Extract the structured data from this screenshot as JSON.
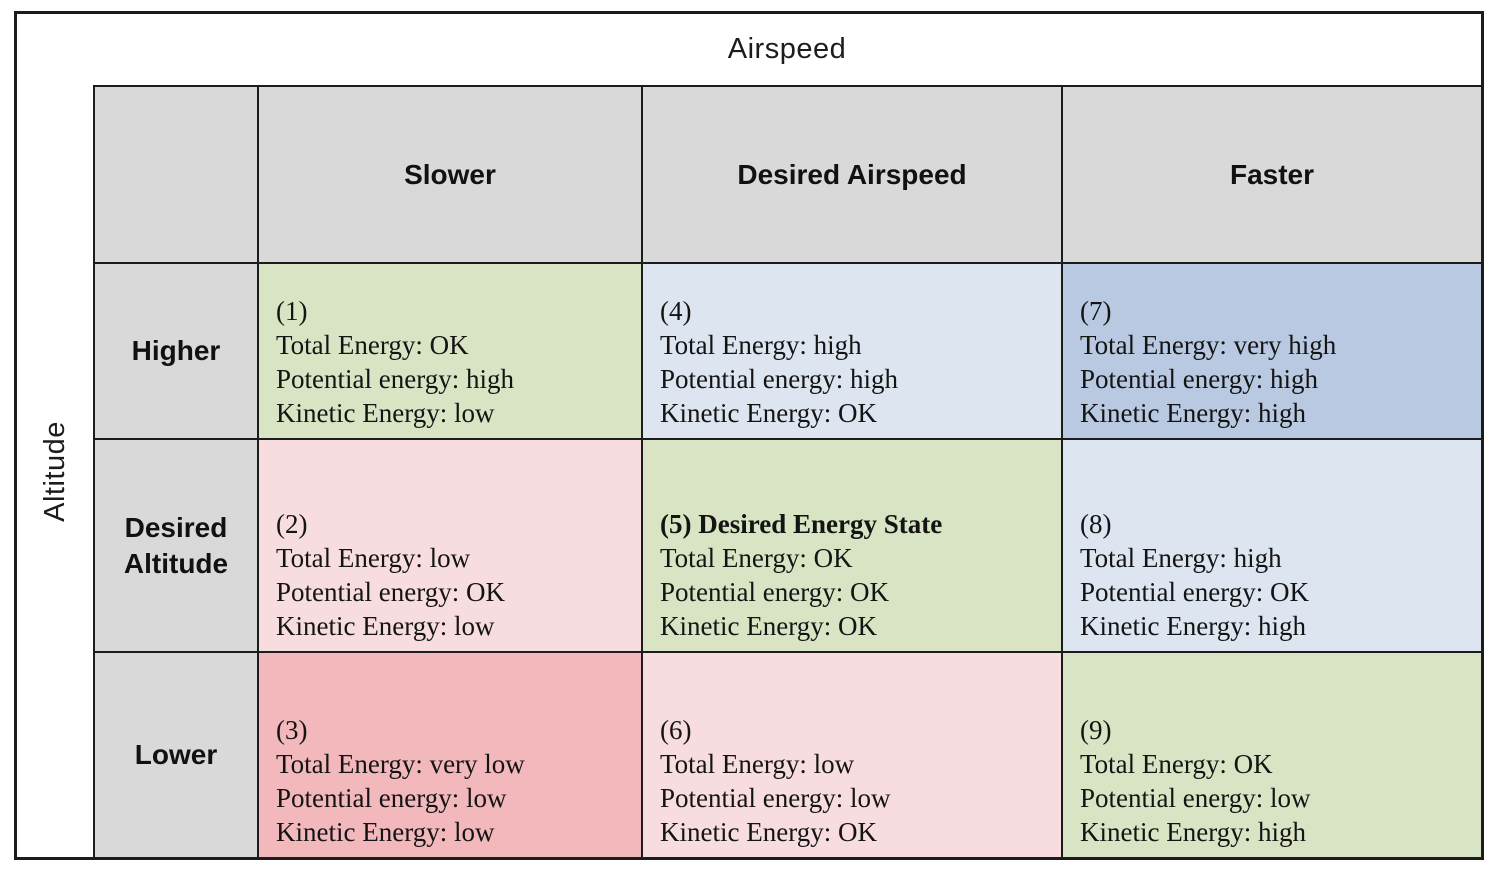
{
  "matrix": {
    "col_axis_title": "Airspeed",
    "row_axis_title": "Altitude",
    "col_headers": [
      "Slower",
      "Desired Airspeed",
      "Faster"
    ],
    "row_headers": [
      "Higher",
      "Desired Altitude",
      "Lower"
    ],
    "colors": {
      "header_gray": "#d9d9d9",
      "green": "#d8e4c3",
      "light_blue": "#dce5f0",
      "mid_blue": "#b9c9e2",
      "light_pink": "#f8dde0",
      "mid_pink": "#f2b8bc",
      "border": "#1c1c1c"
    },
    "cells": [
      {
        "num": 1,
        "head": "(1)",
        "head_bold": false,
        "line1": "Total Energy: OK",
        "line2": "Potential energy: high",
        "line3": "Kinetic Energy: low",
        "bg": "#d8e4c3"
      },
      {
        "num": 4,
        "head": "(4)",
        "head_bold": false,
        "line1": "Total Energy: high",
        "line2": "Potential energy: high",
        "line3": "Kinetic Energy: OK",
        "bg": "#dce5f0"
      },
      {
        "num": 7,
        "head": "(7)",
        "head_bold": false,
        "line1": "Total Energy: very high",
        "line2": "Potential energy: high",
        "line3": "Kinetic Energy: high",
        "bg": "#b9c9e2"
      },
      {
        "num": 2,
        "head": "(2)",
        "head_bold": false,
        "line1": "Total Energy: low",
        "line2": "Potential energy: OK",
        "line3": "Kinetic Energy: low",
        "bg": "#f8dde0"
      },
      {
        "num": 5,
        "head": "(5) Desired Energy State",
        "head_bold": true,
        "line1": "Total Energy: OK",
        "line2": "Potential energy: OK",
        "line3": "Kinetic Energy: OK",
        "bg": "#d8e4c3"
      },
      {
        "num": 8,
        "head": "(8)",
        "head_bold": false,
        "line1": "Total Energy: high",
        "line2": "Potential energy: OK",
        "line3": "Kinetic Energy: high",
        "bg": "#dce5f0"
      },
      {
        "num": 3,
        "head": "(3)",
        "head_bold": false,
        "line1": "Total Energy: very low",
        "line2": "Potential energy: low",
        "line3": "Kinetic Energy: low",
        "bg": "#f2b8bc"
      },
      {
        "num": 6,
        "head": "(6)",
        "head_bold": false,
        "line1": "Total Energy: low",
        "line2": "Potential energy: low",
        "line3": "Kinetic Energy: OK",
        "bg": "#f8dde0"
      },
      {
        "num": 9,
        "head": "(9)",
        "head_bold": false,
        "line1": "Total Energy: OK",
        "line2": "Potential energy: low",
        "line3": "Kinetic Energy: high",
        "bg": "#d8e4c3"
      }
    ]
  }
}
